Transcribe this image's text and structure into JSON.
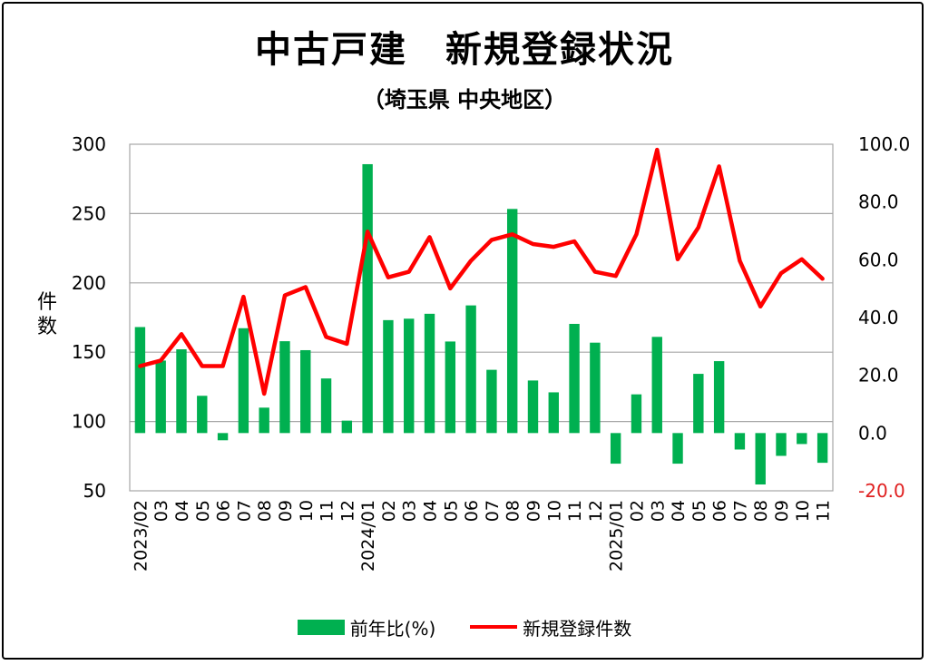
{
  "chart_data": {
    "type": "bar+line",
    "title": "中古戸建　新規登録状況",
    "subtitle": "（埼玉県 中央地区）",
    "ylabel_left": "件数",
    "ylim_left": [
      50,
      300
    ],
    "yticks_left": [
      "300",
      "250",
      "200",
      "150",
      "100",
      "50"
    ],
    "ylim_right": [
      -20,
      100
    ],
    "yticks_right": [
      "100.0",
      "80.0",
      "60.0",
      "40.0",
      "20.0",
      "0.0",
      "-20.0"
    ],
    "negative_tick_color": "#e02020",
    "categories": [
      "2023/02",
      "03",
      "04",
      "05",
      "06",
      "07",
      "08",
      "09",
      "10",
      "11",
      "12",
      "2024/01",
      "02",
      "03",
      "04",
      "05",
      "06",
      "07",
      "08",
      "09",
      "10",
      "11",
      "12",
      "2025/01",
      "02",
      "03",
      "04",
      "05",
      "06",
      "07",
      "08",
      "09",
      "10",
      "11"
    ],
    "grid": true,
    "legend_position": "bottom",
    "series": [
      {
        "name": "前年比(%)",
        "type": "bar",
        "axis": "right",
        "color": "#00b050",
        "values": [
          36.7,
          25.1,
          29.0,
          12.9,
          -2.5,
          36.3,
          8.8,
          31.8,
          28.7,
          18.9,
          4.3,
          93.1,
          39.1,
          39.6,
          41.3,
          31.7,
          44.2,
          21.9,
          77.6,
          18.2,
          14.1,
          37.8,
          31.3,
          -10.6,
          13.4,
          33.3,
          -10.6,
          20.5,
          24.9,
          -5.7,
          -17.8,
          -7.9,
          -3.8,
          -10.3
        ]
      },
      {
        "name": "新規登録件数",
        "type": "line",
        "axis": "left",
        "color": "#ff0000",
        "values": [
          140,
          144,
          163,
          140,
          140,
          190,
          120,
          191,
          197,
          161,
          156,
          237,
          204,
          208,
          233,
          196,
          216,
          231,
          235,
          228,
          226,
          230,
          208,
          205,
          235,
          296,
          217,
          240,
          284,
          216,
          183,
          207,
          217,
          203
        ]
      }
    ]
  }
}
